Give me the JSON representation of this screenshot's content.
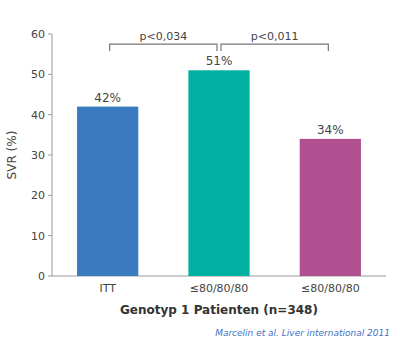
{
  "chart_data": {
    "type": "bar",
    "categories": [
      "ITT",
      "≤80/80/80",
      "≤80/80/80"
    ],
    "values": [
      42,
      51,
      34
    ],
    "colors": [
      "#3a7bbf",
      "#00b0a0",
      "#b05090"
    ],
    "value_labels": [
      "42%",
      "51%",
      "34%"
    ],
    "data_labels": true,
    "ylabel": "SVR (%)",
    "xlabel": "Genotyp 1 Patienten (n=348)",
    "ylim": [
      0,
      60
    ],
    "yticks": [
      0,
      10,
      20,
      30,
      40,
      50,
      60
    ],
    "grid": false,
    "annotations": [
      {
        "type": "bracket",
        "from": 0,
        "to": 1,
        "y": 57.5,
        "label": "p<0,034"
      },
      {
        "type": "bracket",
        "from": 1,
        "to": 2,
        "y": 57.5,
        "label": "p<0,011"
      }
    ],
    "footnote": "Marcelin et al. Liver international 2011"
  }
}
